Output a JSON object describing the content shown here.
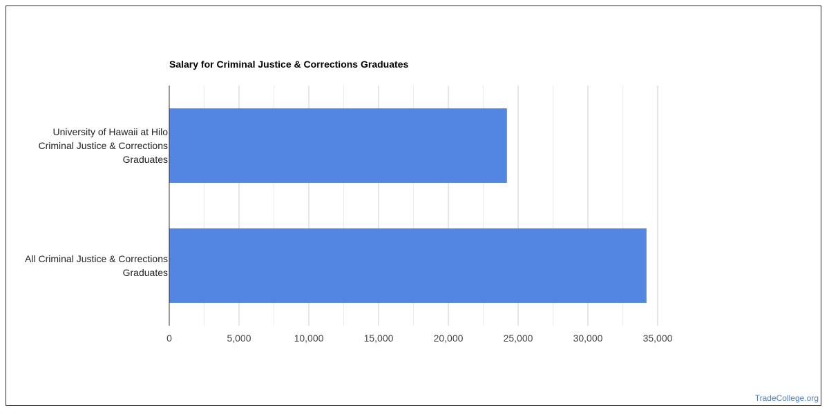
{
  "chart_data": {
    "type": "bar",
    "orientation": "horizontal",
    "title": "Salary for Criminal Justice & Corrections Graduates",
    "categories": [
      [
        "University of Hawaii at Hilo",
        "Criminal Justice & Corrections",
        "Graduates"
      ],
      [
        "All Criminal Justice & Corrections",
        "Graduates"
      ]
    ],
    "values": [
      24200,
      34200
    ],
    "xlim": [
      0,
      35000
    ],
    "x_ticks": [
      "0",
      "5,000",
      "10,000",
      "15,000",
      "20,000",
      "25,000",
      "30,000",
      "35,000"
    ],
    "x_tick_values": [
      0,
      5000,
      10000,
      15000,
      20000,
      25000,
      30000,
      35000
    ],
    "grid": true,
    "bar_color": "#5286e2"
  },
  "watermark": "TradeCollege.org"
}
